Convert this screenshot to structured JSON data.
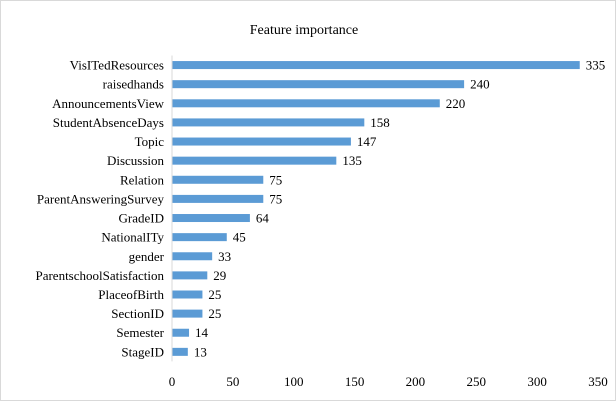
{
  "chart_data": {
    "type": "bar",
    "orientation": "horizontal",
    "title": "Feature importance",
    "categories": [
      "VisITedResources",
      "raisedhands",
      "AnnouncementsView",
      "StudentAbsenceDays",
      "Topic",
      "Discussion",
      "Relation",
      "ParentAnsweringSurvey",
      "GradeID",
      "NationalITy",
      "gender",
      "ParentschoolSatisfaction",
      "PlaceofBirth",
      "SectionID",
      "Semester",
      "StageID"
    ],
    "values": [
      335,
      240,
      220,
      158,
      147,
      135,
      75,
      75,
      64,
      45,
      33,
      29,
      25,
      25,
      14,
      13
    ],
    "xlim": [
      0,
      350
    ],
    "xticks": [
      "0",
      "50",
      "100",
      "150",
      "200",
      "250",
      "300",
      "350"
    ],
    "xlabel": "",
    "ylabel": "",
    "grid": false,
    "data_labels": true,
    "bar_color": "#5b9bd5"
  }
}
